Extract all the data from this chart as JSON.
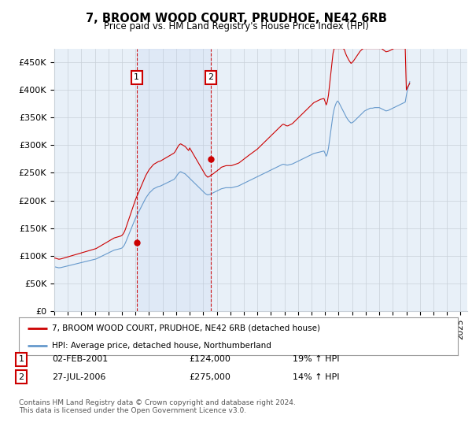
{
  "title": "7, BROOM WOOD COURT, PRUDHOE, NE42 6RB",
  "subtitle": "Price paid vs. HM Land Registry's House Price Index (HPI)",
  "legend_line1": "7, BROOM WOOD COURT, PRUDHOE, NE42 6RB (detached house)",
  "legend_line2": "HPI: Average price, detached house, Northumberland",
  "footnote": "Contains HM Land Registry data © Crown copyright and database right 2024.\nThis data is licensed under the Open Government Licence v3.0.",
  "annotation1_label": "1",
  "annotation1_date": "02-FEB-2001",
  "annotation1_price": "£124,000",
  "annotation1_hpi": "19% ↑ HPI",
  "annotation2_label": "2",
  "annotation2_date": "27-JUL-2006",
  "annotation2_price": "£275,000",
  "annotation2_hpi": "14% ↑ HPI",
  "ylim": [
    0,
    475000
  ],
  "yticks": [
    0,
    50000,
    100000,
    150000,
    200000,
    250000,
    300000,
    350000,
    400000,
    450000
  ],
  "ytick_labels": [
    "£0",
    "£50K",
    "£100K",
    "£150K",
    "£200K",
    "£250K",
    "£300K",
    "£350K",
    "£400K",
    "£450K"
  ],
  "sale1_x": 2001.085,
  "sale1_y": 124000,
  "sale2_x": 2006.567,
  "sale2_y": 275000,
  "vline1_x": 2001.085,
  "vline2_x": 2006.567,
  "red_color": "#cc0000",
  "blue_color": "#6699cc",
  "bg_color": "#ffffff",
  "plot_bg_color": "#e8f0f8",
  "grid_color": "#c8d0d8",
  "xmin": 1995.0,
  "xmax": 2025.5,
  "hpi_monthly": [
    80000,
    79500,
    79000,
    78500,
    78000,
    78200,
    78500,
    79000,
    79500,
    80000,
    80500,
    81000,
    81500,
    82000,
    82500,
    83000,
    83500,
    84000,
    84500,
    85000,
    85500,
    86000,
    86500,
    87000,
    87500,
    88000,
    88500,
    89000,
    89500,
    90000,
    90500,
    91000,
    91500,
    92000,
    92500,
    93000,
    93500,
    94000,
    95000,
    96000,
    97000,
    98000,
    99000,
    100000,
    101000,
    102000,
    103000,
    104000,
    105000,
    106000,
    107000,
    108000,
    109000,
    110000,
    110500,
    111000,
    111500,
    112000,
    112500,
    113000,
    114000,
    116000,
    119000,
    123000,
    128000,
    133000,
    138000,
    143000,
    148000,
    153000,
    158000,
    163000,
    168000,
    172000,
    176000,
    180000,
    184000,
    188000,
    192000,
    196000,
    200000,
    204000,
    207000,
    210000,
    213000,
    215000,
    217000,
    219000,
    221000,
    222000,
    223000,
    224000,
    225000,
    225500,
    226000,
    227000,
    228000,
    229000,
    230000,
    231000,
    232000,
    233000,
    234000,
    235000,
    236000,
    237000,
    238000,
    240000,
    243000,
    246000,
    249000,
    251000,
    252000,
    251000,
    250000,
    249000,
    248000,
    246000,
    244000,
    242000,
    240000,
    238000,
    236000,
    234000,
    232000,
    230000,
    228000,
    226000,
    224000,
    222000,
    220000,
    218000,
    216000,
    214000,
    212000,
    211000,
    210000,
    210500,
    211000,
    212000,
    213000,
    214000,
    215000,
    216000,
    217000,
    218000,
    219000,
    220000,
    221000,
    221500,
    222000,
    222500,
    223000,
    223000,
    223000,
    223000,
    223000,
    223000,
    223500,
    224000,
    224500,
    225000,
    225500,
    226000,
    227000,
    228000,
    229000,
    230000,
    231000,
    232000,
    233000,
    234000,
    235000,
    236000,
    237000,
    238000,
    239000,
    240000,
    241000,
    242000,
    243000,
    244000,
    245000,
    246000,
    247000,
    248000,
    249000,
    250000,
    251000,
    252000,
    253000,
    254000,
    255000,
    256000,
    257000,
    258000,
    259000,
    260000,
    261000,
    262000,
    263000,
    264000,
    265000,
    265500,
    265000,
    264500,
    264000,
    264000,
    264500,
    265000,
    265500,
    266000,
    267000,
    268000,
    269000,
    270000,
    271000,
    272000,
    273000,
    274000,
    275000,
    276000,
    277000,
    278000,
    279000,
    280000,
    281000,
    282000,
    283000,
    284000,
    285000,
    285500,
    286000,
    286500,
    287000,
    287500,
    288000,
    288500,
    289000,
    289500,
    285000,
    280000,
    285000,
    295000,
    310000,
    325000,
    340000,
    355000,
    365000,
    372000,
    377000,
    380000,
    378000,
    374000,
    370000,
    366000,
    362000,
    358000,
    354000,
    350000,
    347000,
    344000,
    342000,
    340000,
    341000,
    342000,
    344000,
    346000,
    348000,
    350000,
    352000,
    354000,
    356000,
    358000,
    360000,
    362000,
    363000,
    364000,
    365000,
    366000,
    367000,
    367000,
    367000,
    367500,
    368000,
    368000,
    368000,
    368000,
    368000,
    367000,
    366000,
    365000,
    364000,
    363000,
    362000,
    362500,
    363000,
    364000,
    365000,
    366000,
    367000,
    368000,
    369000,
    370000,
    371000,
    372000,
    373000,
    374000,
    375000,
    376000,
    377000,
    378000,
    390000,
    400000,
    408000,
    415000
  ],
  "red_monthly": [
    96000,
    95400,
    94800,
    94200,
    93600,
    93800,
    94200,
    94800,
    95400,
    96000,
    96600,
    97200,
    97800,
    98400,
    99000,
    99600,
    100200,
    100800,
    101400,
    102000,
    102600,
    103200,
    103800,
    104400,
    105000,
    105600,
    106200,
    106800,
    107400,
    108000,
    108600,
    109200,
    109800,
    110400,
    111000,
    111600,
    112200,
    112800,
    114000,
    115200,
    116400,
    117600,
    118800,
    120000,
    121200,
    122400,
    123600,
    124800,
    126000,
    127200,
    128400,
    129600,
    130800,
    132000,
    132600,
    133200,
    133800,
    134400,
    135000,
    135600,
    136800,
    139200,
    142800,
    147600,
    153600,
    159600,
    165600,
    171600,
    177600,
    183600,
    189600,
    195600,
    201600,
    206400,
    211200,
    216000,
    220800,
    225600,
    230400,
    235200,
    240000,
    244800,
    248400,
    252000,
    255600,
    258000,
    260400,
    262800,
    265200,
    266400,
    267600,
    268800,
    270000,
    270600,
    271200,
    272400,
    273600,
    274800,
    276000,
    277200,
    278400,
    279600,
    280800,
    282000,
    283200,
    284400,
    285600,
    288000,
    291600,
    295200,
    298800,
    301200,
    302400,
    301200,
    300000,
    298800,
    297600,
    295200,
    292800,
    290400,
    295000,
    291500,
    288000,
    284500,
    281000,
    277500,
    274000,
    270500,
    267000,
    263500,
    260000,
    256500,
    253000,
    249500,
    246000,
    244000,
    242000,
    243000,
    244000,
    246000,
    247000,
    248500,
    250000,
    252000,
    253000,
    255000,
    256000,
    258000,
    260000,
    260700,
    261400,
    262100,
    262800,
    263000,
    263000,
    263000,
    263000,
    263000,
    263700,
    264400,
    265100,
    265800,
    266500,
    267200,
    268400,
    270000,
    271600,
    273200,
    275000,
    276500,
    278000,
    279500,
    281000,
    282500,
    284000,
    285500,
    287000,
    288500,
    290000,
    291500,
    293000,
    295000,
    297000,
    299000,
    301000,
    303000,
    305000,
    307000,
    309000,
    311000,
    313000,
    315000,
    317000,
    319000,
    321000,
    323000,
    325000,
    327000,
    329000,
    331000,
    333000,
    335000,
    337000,
    338000,
    337000,
    336000,
    335000,
    335000,
    336000,
    337000,
    338000,
    339000,
    341000,
    343000,
    345000,
    347000,
    349000,
    351000,
    353000,
    355000,
    357000,
    359000,
    361000,
    363000,
    365000,
    367000,
    369000,
    371000,
    373000,
    375000,
    377000,
    378000,
    379000,
    380000,
    381000,
    382000,
    383000,
    383500,
    384000,
    384500,
    379000,
    373000,
    379000,
    391000,
    410000,
    430000,
    448000,
    466000,
    480000,
    490000,
    497000,
    503000,
    499000,
    494000,
    488000,
    483000,
    478000,
    473000,
    467000,
    462000,
    458000,
    454000,
    451000,
    448000,
    450000,
    452000,
    455000,
    458000,
    461000,
    464000,
    467000,
    470000,
    472000,
    474000,
    476000,
    477000,
    478000,
    478500,
    479000,
    479500,
    480000,
    479500,
    479000,
    479500,
    480000,
    479500,
    479000,
    479000,
    478000,
    476500,
    475000,
    473500,
    472000,
    470500,
    469000,
    469500,
    470000,
    471000,
    472000,
    473000,
    474000,
    475000,
    476000,
    477000,
    478000,
    479000,
    480000,
    481000,
    482000,
    483000,
    484000,
    485000,
    400000,
    405000,
    408000,
    412000
  ]
}
